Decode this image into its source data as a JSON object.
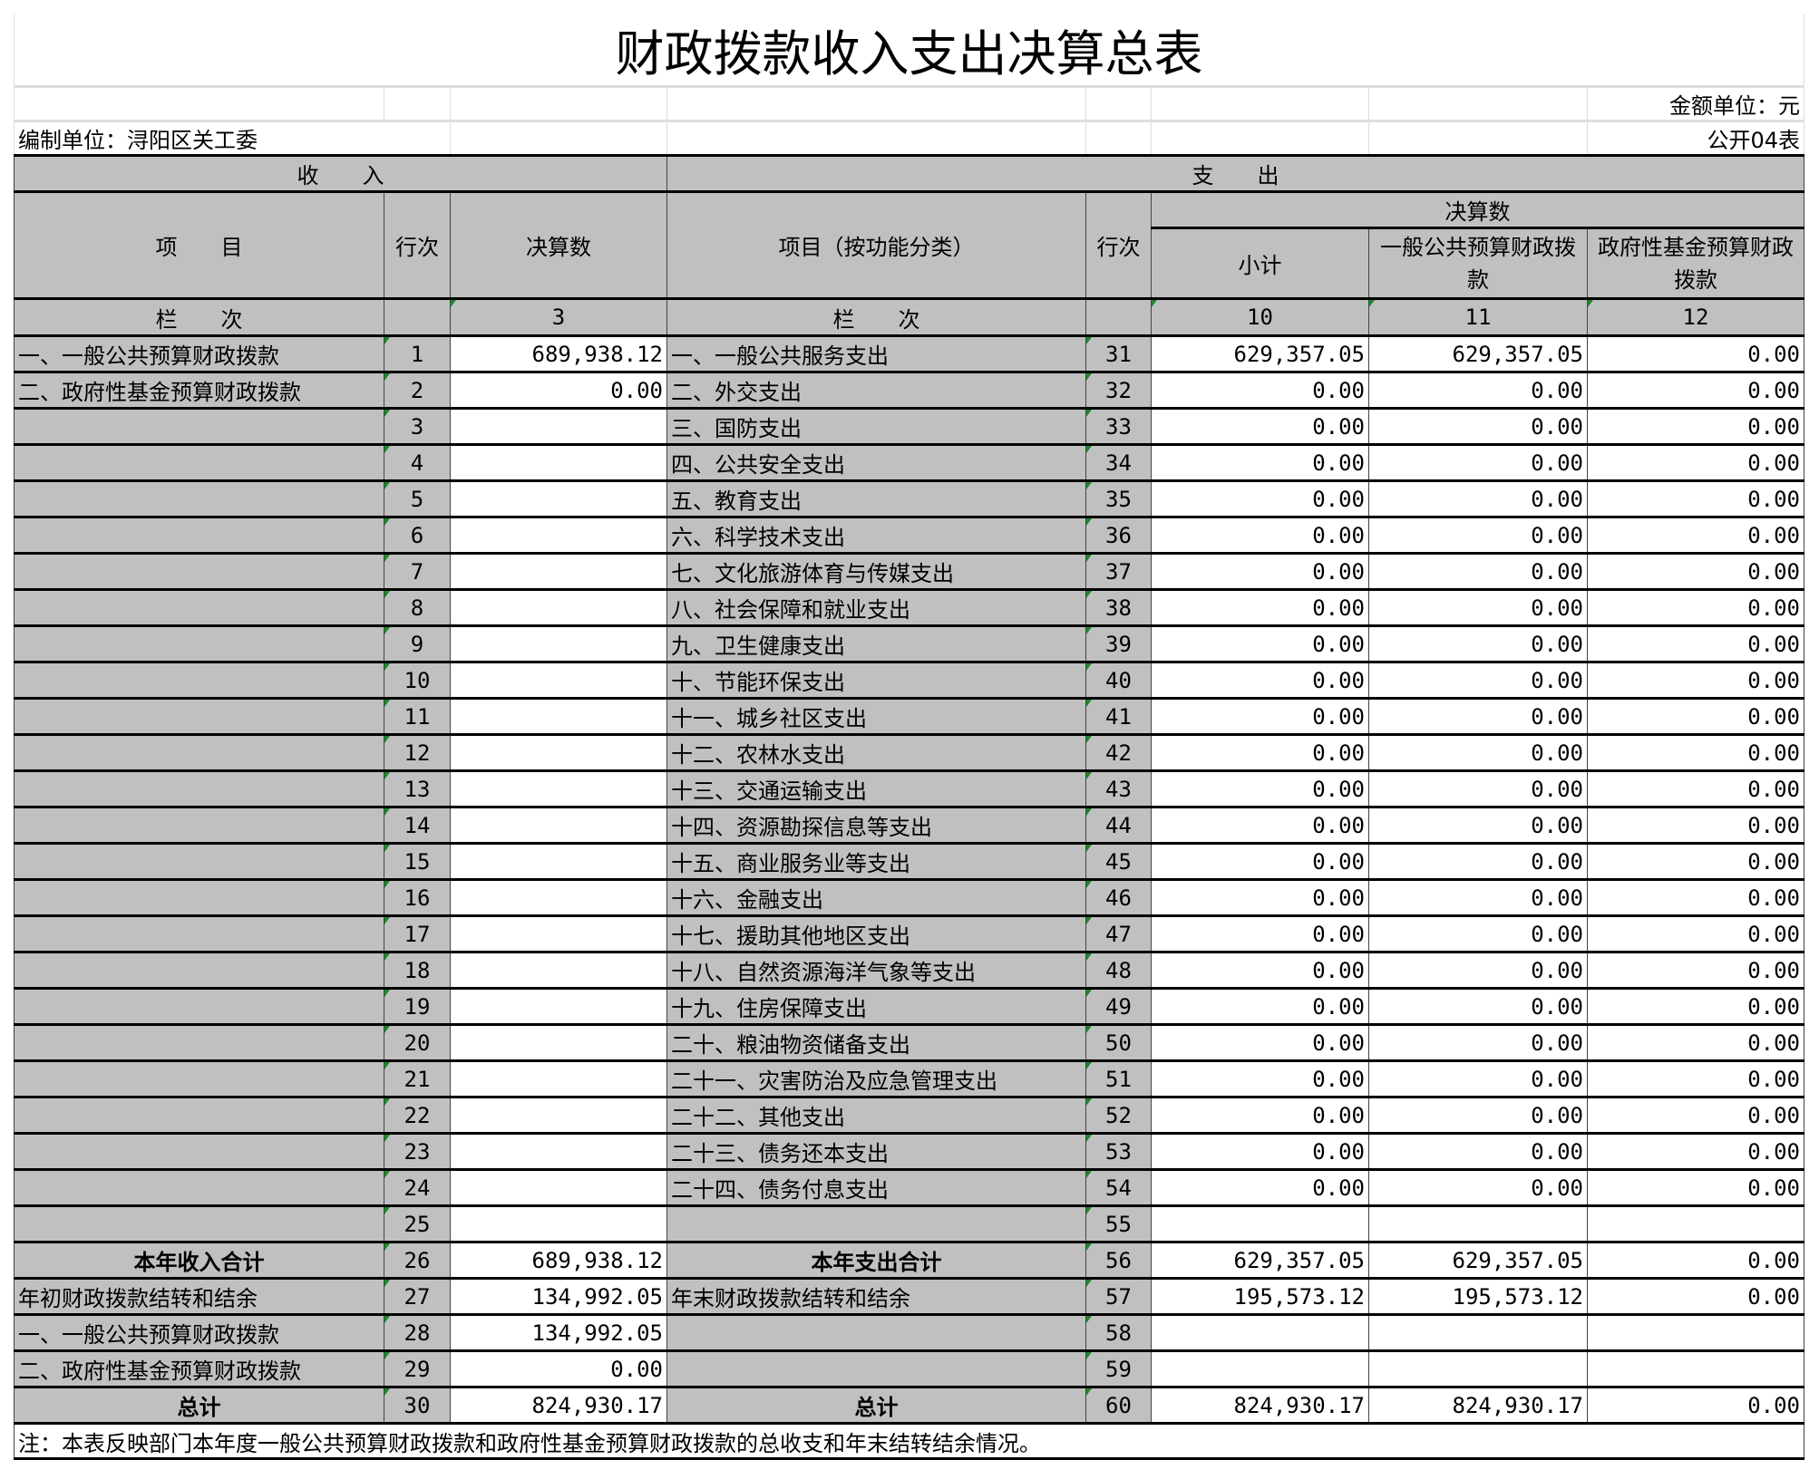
{
  "title": "财政拨款收入支出决算总表",
  "unit_label": "金额单位：元",
  "org_label": "编制单位：浔阳区关工委",
  "table_code": "公开04表",
  "header": {
    "income": "收　　入",
    "expense": "支　　出",
    "item": "项　　目",
    "line_no": "行次",
    "amount": "决算数",
    "item_func": "项目（按功能分类）",
    "line_no2": "行次",
    "amount_group": "决算数",
    "subtotal": "小计",
    "general_budget": "一般公共预算财政拨款",
    "gov_fund": "政府性基金预算财政拨款",
    "col_label": "栏　　次",
    "col_label2": "栏　　次",
    "col3": "3",
    "col10": "10",
    "col11": "11",
    "col12": "12"
  },
  "rows": [
    {
      "li": "一、一般公共预算财政拨款",
      "ln": "1",
      "la": "689,938.12",
      "ri": "一、一般公共服务支出",
      "rn": "31",
      "s": "629,357.05",
      "g": "629,357.05",
      "f": "0.00"
    },
    {
      "li": "二、政府性基金预算财政拨款",
      "ln": "2",
      "la": "0.00",
      "ri": "二、外交支出",
      "rn": "32",
      "s": "0.00",
      "g": "0.00",
      "f": "0.00"
    },
    {
      "li": "",
      "ln": "3",
      "la": "",
      "ri": "三、国防支出",
      "rn": "33",
      "s": "0.00",
      "g": "0.00",
      "f": "0.00"
    },
    {
      "li": "",
      "ln": "4",
      "la": "",
      "ri": "四、公共安全支出",
      "rn": "34",
      "s": "0.00",
      "g": "0.00",
      "f": "0.00"
    },
    {
      "li": "",
      "ln": "5",
      "la": "",
      "ri": "五、教育支出",
      "rn": "35",
      "s": "0.00",
      "g": "0.00",
      "f": "0.00"
    },
    {
      "li": "",
      "ln": "6",
      "la": "",
      "ri": "六、科学技术支出",
      "rn": "36",
      "s": "0.00",
      "g": "0.00",
      "f": "0.00"
    },
    {
      "li": "",
      "ln": "7",
      "la": "",
      "ri": "七、文化旅游体育与传媒支出",
      "rn": "37",
      "s": "0.00",
      "g": "0.00",
      "f": "0.00"
    },
    {
      "li": "",
      "ln": "8",
      "la": "",
      "ri": "八、社会保障和就业支出",
      "rn": "38",
      "s": "0.00",
      "g": "0.00",
      "f": "0.00"
    },
    {
      "li": "",
      "ln": "9",
      "la": "",
      "ri": "九、卫生健康支出",
      "rn": "39",
      "s": "0.00",
      "g": "0.00",
      "f": "0.00"
    },
    {
      "li": "",
      "ln": "10",
      "la": "",
      "ri": "十、节能环保支出",
      "rn": "40",
      "s": "0.00",
      "g": "0.00",
      "f": "0.00"
    },
    {
      "li": "",
      "ln": "11",
      "la": "",
      "ri": "十一、城乡社区支出",
      "rn": "41",
      "s": "0.00",
      "g": "0.00",
      "f": "0.00"
    },
    {
      "li": "",
      "ln": "12",
      "la": "",
      "ri": "十二、农林水支出",
      "rn": "42",
      "s": "0.00",
      "g": "0.00",
      "f": "0.00"
    },
    {
      "li": "",
      "ln": "13",
      "la": "",
      "ri": "十三、交通运输支出",
      "rn": "43",
      "s": "0.00",
      "g": "0.00",
      "f": "0.00"
    },
    {
      "li": "",
      "ln": "14",
      "la": "",
      "ri": "十四、资源勘探信息等支出",
      "rn": "44",
      "s": "0.00",
      "g": "0.00",
      "f": "0.00"
    },
    {
      "li": "",
      "ln": "15",
      "la": "",
      "ri": "十五、商业服务业等支出",
      "rn": "45",
      "s": "0.00",
      "g": "0.00",
      "f": "0.00"
    },
    {
      "li": "",
      "ln": "16",
      "la": "",
      "ri": "十六、金融支出",
      "rn": "46",
      "s": "0.00",
      "g": "0.00",
      "f": "0.00"
    },
    {
      "li": "",
      "ln": "17",
      "la": "",
      "ri": "十七、援助其他地区支出",
      "rn": "47",
      "s": "0.00",
      "g": "0.00",
      "f": "0.00"
    },
    {
      "li": "",
      "ln": "18",
      "la": "",
      "ri": "十八、自然资源海洋气象等支出",
      "rn": "48",
      "s": "0.00",
      "g": "0.00",
      "f": "0.00"
    },
    {
      "li": "",
      "ln": "19",
      "la": "",
      "ri": "十九、住房保障支出",
      "rn": "49",
      "s": "0.00",
      "g": "0.00",
      "f": "0.00"
    },
    {
      "li": "",
      "ln": "20",
      "la": "",
      "ri": "二十、粮油物资储备支出",
      "rn": "50",
      "s": "0.00",
      "g": "0.00",
      "f": "0.00"
    },
    {
      "li": "",
      "ln": "21",
      "la": "",
      "ri": "二十一、灾害防治及应急管理支出",
      "rn": "51",
      "s": "0.00",
      "g": "0.00",
      "f": "0.00"
    },
    {
      "li": "",
      "ln": "22",
      "la": "",
      "ri": "二十二、其他支出",
      "rn": "52",
      "s": "0.00",
      "g": "0.00",
      "f": "0.00"
    },
    {
      "li": "",
      "ln": "23",
      "la": "",
      "ri": "二十三、债务还本支出",
      "rn": "53",
      "s": "0.00",
      "g": "0.00",
      "f": "0.00"
    },
    {
      "li": "",
      "ln": "24",
      "la": "",
      "ri": "二十四、债务付息支出",
      "rn": "54",
      "s": "0.00",
      "g": "0.00",
      "f": "0.00"
    },
    {
      "li": "",
      "ln": "25",
      "la": "",
      "ri": "",
      "rn": "55",
      "s": "",
      "g": "",
      "f": ""
    },
    {
      "li": "本年收入合计",
      "ln": "26",
      "la": "689,938.12",
      "ri": "本年支出合计",
      "rn": "56",
      "s": "629,357.05",
      "g": "629,357.05",
      "f": "0.00",
      "bold": true
    },
    {
      "li": "年初财政拨款结转和结余",
      "ln": "27",
      "la": "134,992.05",
      "ri": "年末财政拨款结转和结余",
      "rn": "57",
      "s": "195,573.12",
      "g": "195,573.12",
      "f": "0.00"
    },
    {
      "li": "一、一般公共预算财政拨款",
      "ln": "28",
      "la": "134,992.05",
      "ri": "",
      "rn": "58",
      "s": "",
      "g": "",
      "f": ""
    },
    {
      "li": "二、政府性基金预算财政拨款",
      "ln": "29",
      "la": "0.00",
      "ri": "",
      "rn": "59",
      "s": "",
      "g": "",
      "f": ""
    },
    {
      "li": "总计",
      "ln": "30",
      "la": "824,930.17",
      "ri": "总计",
      "rn": "60",
      "s": "824,930.17",
      "g": "824,930.17",
      "f": "0.00",
      "bold": true
    }
  ],
  "note": "注：本表反映部门本年度一般公共预算财政拨款和政府性基金预算财政拨款的总收支和年末结转结余情况。",
  "colors": {
    "header_gray": "#c0c0c0",
    "mark_green": "#1a8a2a"
  }
}
